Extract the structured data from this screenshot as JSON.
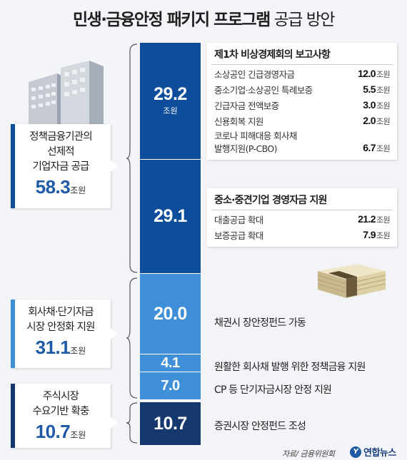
{
  "title": {
    "main": "민생·금융안정 패키지 프로그램",
    "sub": "공급 방안"
  },
  "chart_data": {
    "type": "bar",
    "title": "민생·금융안정 패키지 프로그램 공급 방안",
    "unit": "조원",
    "segments": [
      {
        "value": 29.2,
        "label": "29.2",
        "unit": "조원",
        "color": "#0d4d9b",
        "desc": "제1차 비상경제회의 보고사항"
      },
      {
        "value": 29.1,
        "label": "29.1",
        "unit": "",
        "color": "#0d4d9b",
        "desc": "중소·중견기업 경영자금 지원"
      },
      {
        "value": 20.0,
        "label": "20.0",
        "unit": "",
        "color": "#3f8fd8",
        "desc": "채권시 장안정펀드 가동"
      },
      {
        "value": 4.1,
        "label": "4.1",
        "unit": "",
        "color": "#3f8fd8",
        "desc": "원활한 회사채 발행 위한 정책금융 지원"
      },
      {
        "value": 7.0,
        "label": "7.0",
        "unit": "",
        "color": "#3f8fd8",
        "desc": "CP 등 단기자금시장 안정 지원"
      },
      {
        "value": 10.7,
        "label": "10.7",
        "unit": "",
        "color": "#14386d",
        "desc": "증권시장 안정펀드 조성"
      }
    ],
    "groups": [
      {
        "name": "정책금융기관의\n선제적\n기업자금 공급",
        "amount": "58.3",
        "unit": "조원"
      },
      {
        "name": "회사채·단기자금\n시장 안정화 지원",
        "amount": "31.1",
        "unit": "조원"
      },
      {
        "name": "주식시장\n수요기반 확충",
        "amount": "10.7",
        "unit": "조원"
      }
    ],
    "details": [
      {
        "header": "제1차 비상경제회의 보고사항",
        "items": [
          {
            "label": "소상공인 긴급경영자금",
            "value": "12.0",
            "unit": "조원"
          },
          {
            "label": "중소기업·소상공인 특례보증",
            "value": "5.5",
            "unit": "조원"
          },
          {
            "label": "긴급자금 전액보증",
            "value": "3.0",
            "unit": "조원"
          },
          {
            "label": "신용회복 지원",
            "value": "2.0",
            "unit": "조원"
          },
          {
            "label": "코로나 피해대응 회사채\n발행지원(P-CBO)",
            "value": "6.7",
            "unit": "조원"
          }
        ]
      },
      {
        "header": "중소·중견기업 경영자금 지원",
        "items": [
          {
            "label": "대출공급 확대",
            "value": "21.2",
            "unit": "조원"
          },
          {
            "label": "보증공급 확대",
            "value": "7.9",
            "unit": "조원"
          }
        ]
      }
    ]
  },
  "footer": {
    "source": "자료/ 금융위원회",
    "logo": "연합뉴스"
  },
  "colors": {
    "dark_blue": "#0d4d9b",
    "light_blue": "#3f8fd8",
    "navy": "#14386d",
    "accent_text": "#1f5aa6",
    "background": "#f2f4f7"
  }
}
